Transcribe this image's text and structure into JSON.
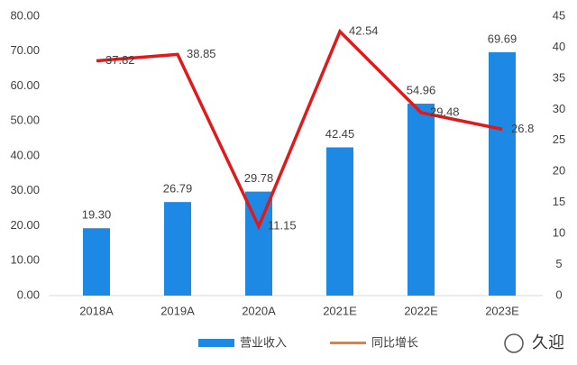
{
  "chart_data": {
    "type": "combo",
    "categories": [
      "2018A",
      "2019A",
      "2020A",
      "2021E",
      "2022E",
      "2023E"
    ],
    "series": [
      {
        "name": "营业收入",
        "type": "bar",
        "color": "#1e88e5",
        "values": [
          19.3,
          26.79,
          29.78,
          42.45,
          54.96,
          69.69
        ],
        "value_labels": [
          "19.30",
          "26.79",
          "29.78",
          "42.45",
          "54.96",
          "69.69"
        ]
      },
      {
        "name": "同比增长",
        "type": "line",
        "axis": "y2",
        "color": "#e0191b",
        "legend_color": "#ed7d31",
        "values": [
          37.82,
          38.85,
          11.15,
          42.54,
          29.48,
          26.8
        ]
      }
    ],
    "ylim": [
      0,
      80
    ],
    "yticks": [
      {
        "value": 0,
        "label": "0.00"
      },
      {
        "value": 10,
        "label": "10.00"
      },
      {
        "value": 20,
        "label": "20.00"
      },
      {
        "value": 30,
        "label": "30.00"
      },
      {
        "value": 40,
        "label": "40.00"
      },
      {
        "value": 50,
        "label": "50.00"
      },
      {
        "value": 60,
        "label": "60.00"
      },
      {
        "value": 70,
        "label": "70.00"
      },
      {
        "value": 80,
        "label": "80.00"
      }
    ],
    "y2lim": [
      0,
      45
    ],
    "y2ticks": [
      0,
      5,
      10,
      15,
      20,
      25,
      30,
      35,
      40,
      45
    ],
    "legend": "bottom",
    "watermark": "久迎"
  }
}
